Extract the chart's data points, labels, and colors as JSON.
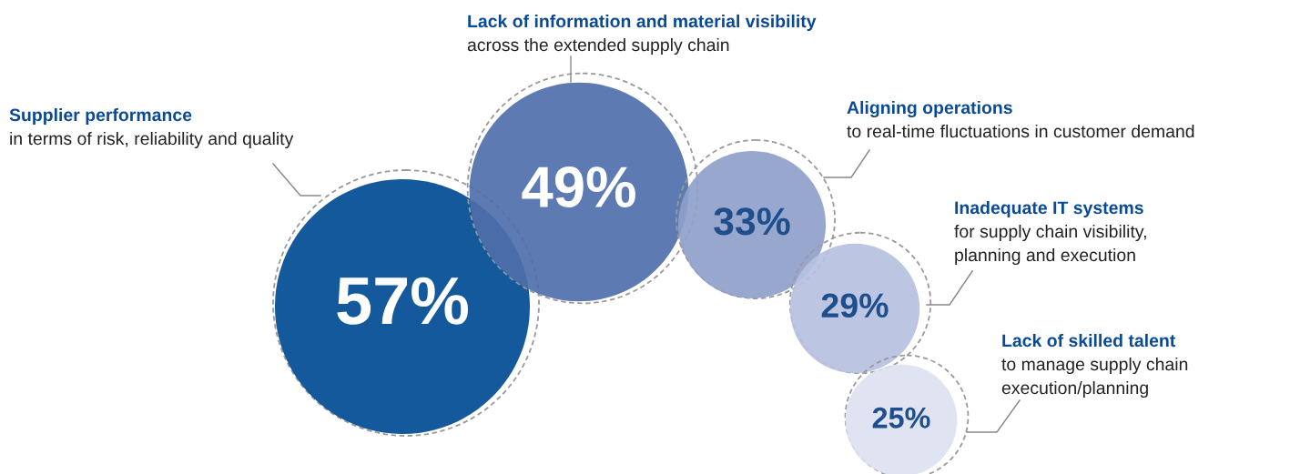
{
  "chart_data": {
    "type": "other",
    "categories": [
      "Supplier performance\nin terms of risk, reliability and quality",
      "Lack of information and material visibility\nacross the extended supply chain",
      "Aligning operations\nto real-time fluctuations in customer demand",
      "Inadequate IT systems\nfor supply chain visibility,\nplanning and execution",
      "Lack of skilled talent\nto manage supply chain\nexecution/planning"
    ],
    "values": [
      57,
      49,
      33,
      29,
      25
    ],
    "value_labels": [
      "57%",
      "49%",
      "33%",
      "29%",
      "25%"
    ],
    "colors": [
      "#004b93",
      "#4f6fab",
      "#8e9fca",
      "#b6c0de",
      "#dde1f0"
    ]
  }
}
